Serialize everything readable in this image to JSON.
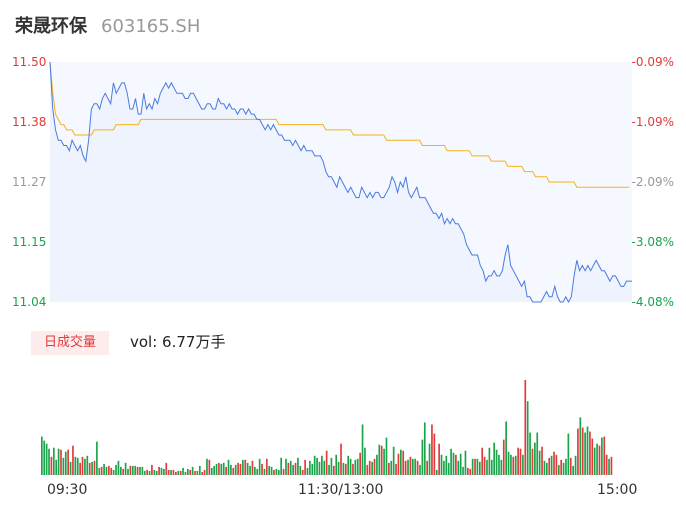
{
  "header": {
    "name": "荣晟环保",
    "code": "603165.SH"
  },
  "chart_data": [
    {
      "type": "line",
      "title": "",
      "ylim": [
        11.04,
        11.5
      ],
      "y_ticks_left": [
        "11.50",
        "11.38",
        "11.27",
        "11.15",
        "11.04"
      ],
      "y_ticks_right": [
        "-0.09%",
        "-1.09%",
        "-2.09%",
        "-3.08%",
        "-4.08%"
      ],
      "x_ticks": [
        "09:30",
        "11:30/13:00",
        "15:00"
      ],
      "series": [
        {
          "name": "",
          "values": [
            11.5,
            11.41,
            11.37,
            11.35,
            11.35,
            11.34,
            11.34,
            11.33,
            11.35,
            11.34,
            11.33,
            11.34,
            11.32,
            11.31,
            11.35,
            11.41,
            11.42,
            11.42,
            11.41,
            11.43,
            11.44,
            11.43,
            11.42,
            11.46,
            11.44,
            11.45,
            11.46,
            11.46,
            11.44,
            11.41,
            11.41,
            11.43,
            11.4,
            11.4,
            11.44,
            11.41,
            11.42,
            11.41,
            11.43,
            11.42,
            11.44,
            11.45,
            11.46,
            11.45,
            11.46,
            11.45,
            11.44,
            11.44,
            11.44,
            11.43,
            11.43,
            11.44,
            11.44,
            11.43,
            11.42,
            11.41,
            11.41,
            11.42,
            11.42,
            11.41,
            11.41,
            11.43,
            11.42,
            11.42,
            11.41,
            11.42,
            11.41,
            11.41,
            11.4,
            11.41,
            11.41,
            11.4,
            11.41,
            11.4,
            11.4,
            11.39,
            11.39,
            11.38,
            11.37,
            11.38,
            11.37,
            11.38,
            11.37,
            11.36,
            11.36,
            11.35,
            11.35,
            11.35,
            11.34,
            11.35,
            11.34,
            11.33,
            11.34,
            11.33,
            11.33,
            11.33,
            11.32,
            11.32,
            11.32,
            11.31,
            11.29,
            11.28,
            11.28,
            11.27,
            11.26,
            11.28,
            11.27,
            11.26,
            11.25,
            11.26,
            11.25,
            11.24,
            11.24,
            11.26,
            11.25,
            11.24,
            11.25,
            11.24,
            11.25,
            11.25,
            11.24,
            11.24,
            11.25,
            11.26,
            11.28,
            11.27,
            11.25,
            11.27,
            11.26,
            11.28,
            11.25,
            11.24,
            11.25,
            11.26,
            11.24,
            11.24,
            11.24,
            11.23,
            11.22,
            11.21,
            11.21,
            11.2,
            11.21,
            11.19,
            11.2,
            11.19,
            11.2,
            11.19,
            11.19,
            11.18,
            11.17,
            11.15,
            11.14,
            11.13,
            11.13,
            11.13,
            11.11,
            11.1,
            11.08,
            11.09,
            11.09,
            11.1,
            11.09,
            11.09,
            11.1,
            11.13,
            11.15,
            11.11,
            11.1,
            11.09,
            11.08,
            11.07,
            11.08,
            11.05,
            11.05,
            11.04,
            11.04,
            11.04,
            11.04,
            11.05,
            11.06,
            11.05,
            11.05,
            11.07,
            11.05,
            11.04,
            11.04,
            11.05,
            11.04,
            11.05,
            11.09,
            11.12,
            11.1,
            11.11,
            11.1,
            11.11,
            11.1,
            11.11,
            11.12,
            11.11,
            11.1,
            11.1,
            11.09,
            11.08,
            11.09,
            11.09,
            11.08,
            11.07,
            11.07,
            11.08,
            11.08,
            11.08
          ]
        },
        {
          "name": "",
          "values": [
            11.5,
            11.44,
            11.4,
            11.39,
            11.38,
            11.38,
            11.37,
            11.37,
            11.37,
            11.36,
            11.36,
            11.36,
            11.36,
            11.36,
            11.36,
            11.36,
            11.37,
            11.37,
            11.37,
            11.37,
            11.37,
            11.37,
            11.37,
            11.37,
            11.38,
            11.38,
            11.38,
            11.38,
            11.38,
            11.38,
            11.38,
            11.38,
            11.38,
            11.39,
            11.39,
            11.39,
            11.39,
            11.39,
            11.39,
            11.39,
            11.39,
            11.39,
            11.39,
            11.39,
            11.39,
            11.39,
            11.39,
            11.39,
            11.39,
            11.39,
            11.39,
            11.39,
            11.39,
            11.39,
            11.39,
            11.39,
            11.39,
            11.39,
            11.39,
            11.39,
            11.39,
            11.39,
            11.39,
            11.39,
            11.39,
            11.39,
            11.39,
            11.39,
            11.39,
            11.39,
            11.39,
            11.39,
            11.39,
            11.39,
            11.39,
            11.39,
            11.39,
            11.39,
            11.39,
            11.39,
            11.39,
            11.39,
            11.39,
            11.38,
            11.38,
            11.38,
            11.38,
            11.38,
            11.38,
            11.38,
            11.38,
            11.38,
            11.38,
            11.38,
            11.38,
            11.38,
            11.38,
            11.38,
            11.38,
            11.38,
            11.37,
            11.37,
            11.37,
            11.37,
            11.37,
            11.37,
            11.37,
            11.37,
            11.37,
            11.37,
            11.36,
            11.36,
            11.36,
            11.36,
            11.36,
            11.36,
            11.36,
            11.36,
            11.36,
            11.36,
            11.36,
            11.36,
            11.35,
            11.35,
            11.35,
            11.35,
            11.35,
            11.35,
            11.35,
            11.35,
            11.35,
            11.35,
            11.35,
            11.35,
            11.35,
            11.34,
            11.34,
            11.34,
            11.34,
            11.34,
            11.34,
            11.34,
            11.34,
            11.34,
            11.33,
            11.33,
            11.33,
            11.33,
            11.33,
            11.33,
            11.33,
            11.33,
            11.33,
            11.32,
            11.32,
            11.32,
            11.32,
            11.32,
            11.32,
            11.32,
            11.31,
            11.31,
            11.31,
            11.31,
            11.31,
            11.31,
            11.3,
            11.3,
            11.3,
            11.3,
            11.3,
            11.3,
            11.29,
            11.29,
            11.29,
            11.29,
            11.28,
            11.28,
            11.28,
            11.28,
            11.28,
            11.27,
            11.27,
            11.27,
            11.27,
            11.27,
            11.27,
            11.27,
            11.27,
            11.27,
            11.27,
            11.26,
            11.26,
            11.26,
            11.26,
            11.26,
            11.26,
            11.26,
            11.26,
            11.26,
            11.26,
            11.26,
            11.26,
            11.26,
            11.26,
            11.26,
            11.26,
            11.26,
            11.26,
            11.26,
            11.26
          ]
        }
      ]
    },
    {
      "type": "bar",
      "title": "",
      "volume_label": "日成交量",
      "volume_text": "vol: 6.77万手",
      "values": [
        38,
        34,
        31,
        26,
        18,
        27,
        15,
        26,
        25,
        17,
        23,
        25,
        13,
        29,
        18,
        17,
        12,
        18,
        16,
        19,
        12,
        13,
        14,
        33,
        7,
        8,
        11,
        8,
        9,
        7,
        5,
        10,
        14,
        8,
        6,
        12,
        6,
        9,
        9,
        9,
        8,
        8,
        8,
        4,
        5,
        4,
        10,
        5,
        4,
        8,
        7,
        6,
        12,
        5,
        5,
        5,
        3,
        4,
        4,
        7,
        3,
        6,
        5,
        8,
        4,
        4,
        9,
        3,
        5,
        16,
        15,
        7,
        9,
        11,
        12,
        11,
        12,
        8,
        15,
        10,
        7,
        10,
        12,
        11,
        15,
        15,
        12,
        9,
        14,
        8,
        6,
        16,
        11,
        6,
        16,
        9,
        8,
        5,
        6,
        5,
        17,
        6,
        16,
        12,
        14,
        10,
        12,
        17,
        9,
        5,
        15,
        7,
        14,
        11,
        19,
        17,
        13,
        19,
        14,
        24,
        10,
        17,
        9,
        20,
        13,
        31,
        12,
        11,
        19,
        16,
        11,
        15,
        16,
        22,
        50,
        27,
        10,
        14,
        13,
        16,
        20,
        30,
        29,
        26,
        37,
        12,
        14,
        28,
        11,
        21,
        25,
        24,
        14,
        15,
        18,
        16,
        16,
        14,
        10,
        35,
        52,
        14,
        31,
        50,
        41,
        5,
        31,
        20,
        14,
        19,
        12,
        26,
        22,
        20,
        14,
        21,
        8,
        24,
        7,
        6,
        16,
        16,
        16,
        13,
        27,
        18,
        15,
        27,
        15,
        32,
        25,
        20,
        15,
        35,
        53,
        23,
        20,
        18,
        19,
        27,
        26,
        20,
        94,
        73,
        42,
        26,
        32,
        42,
        24,
        28,
        14,
        12,
        17,
        19,
        23,
        20,
        10,
        15,
        12,
        16,
        41,
        17,
        9,
        19,
        46,
        57,
        47,
        42,
        48,
        43,
        36,
        27,
        31,
        29,
        37,
        38,
        20,
        16,
        18
      ]
    }
  ]
}
